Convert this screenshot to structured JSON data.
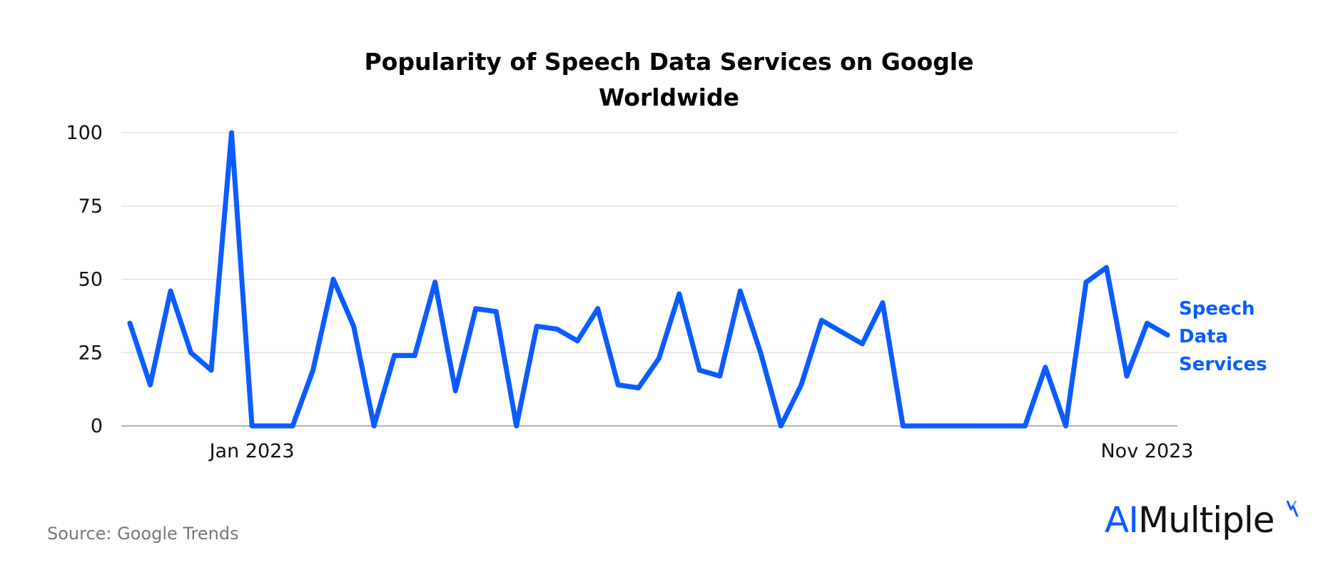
{
  "chart_data": {
    "type": "line",
    "title_line1": "Popularity of Speech Data Services on Google",
    "title_line2": "Worldwide",
    "ylim": [
      0,
      100
    ],
    "yticks": [
      0,
      25,
      50,
      75,
      100
    ],
    "x_tick_labels": [
      {
        "index": 6,
        "label": "Jan 2023"
      },
      {
        "index": 50,
        "label": "Nov 2023"
      }
    ],
    "grid": true,
    "series": [
      {
        "name": "Speech Data Services",
        "name_lines": [
          "Speech",
          "Data",
          "Services"
        ],
        "color": "#0a5cff",
        "values": [
          35,
          14,
          46,
          25,
          19,
          100,
          0,
          0,
          0,
          19,
          50,
          34,
          0,
          24,
          24,
          49,
          12,
          40,
          39,
          0,
          34,
          33,
          29,
          40,
          14,
          13,
          23,
          45,
          19,
          17,
          46,
          25,
          0,
          14,
          36,
          32,
          28,
          42,
          0,
          0,
          0,
          0,
          0,
          0,
          0,
          20,
          0,
          49,
          54,
          17,
          35,
          31
        ]
      }
    ]
  },
  "footer": {
    "source": "Source: Google Trends",
    "logo_ai": "AI",
    "logo_rest": "Multiple"
  }
}
